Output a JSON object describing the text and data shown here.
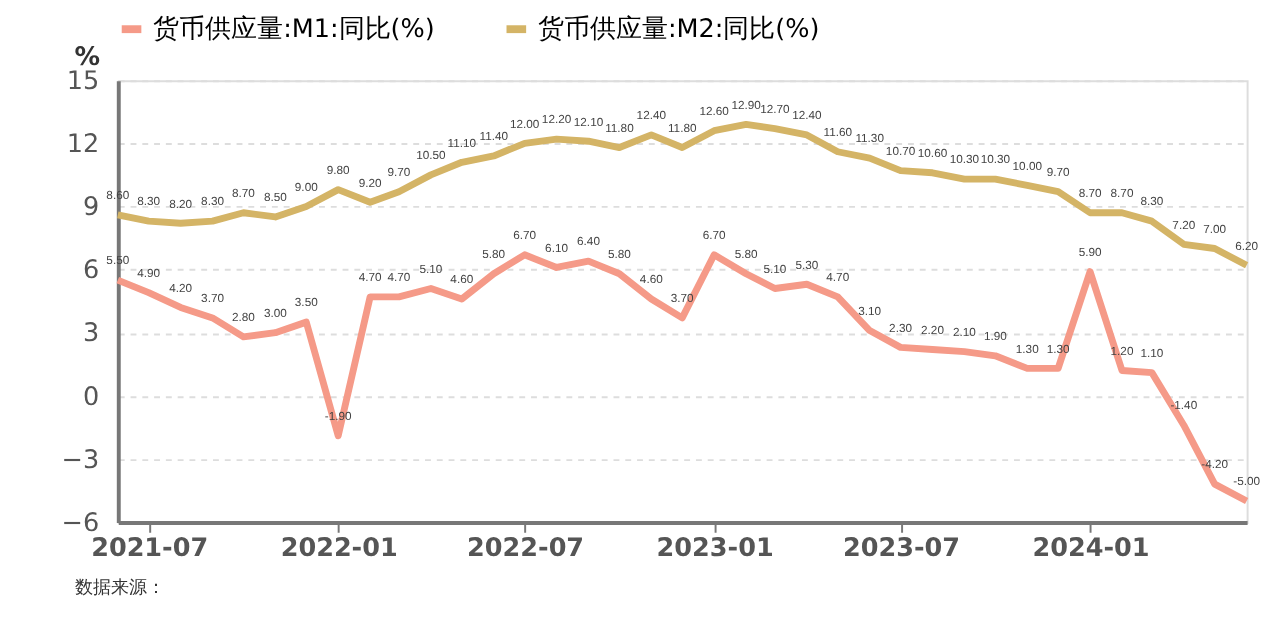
{
  "chart_data": {
    "type": "line",
    "ylabel": "%",
    "annotations": [
      "数据来源："
    ],
    "x": [
      "2021-06",
      "2021-07",
      "2021-08",
      "2021-09",
      "2021-10",
      "2021-11",
      "2021-12",
      "2022-01",
      "2022-02",
      "2022-03",
      "2022-04",
      "2022-05",
      "2022-06",
      "2022-07",
      "2022-08",
      "2022-09",
      "2022-10",
      "2022-11",
      "2022-12",
      "2023-01",
      "2023-02",
      "2023-03",
      "2023-04",
      "2023-05",
      "2023-06",
      "2023-07",
      "2023-08",
      "2023-09",
      "2023-10",
      "2023-11",
      "2023-12",
      "2024-01",
      "2024-02",
      "2024-03",
      "2024-04",
      "2024-05",
      "2024-06"
    ],
    "series": [
      {
        "name": "货币供应量:M1:同比(%)",
        "color": "#f59a88",
        "values": [
          5.5,
          4.9,
          4.2,
          3.7,
          2.8,
          3.0,
          3.5,
          -1.9,
          4.7,
          4.7,
          5.1,
          4.6,
          5.8,
          6.7,
          6.1,
          6.4,
          5.8,
          4.6,
          3.7,
          6.7,
          5.8,
          5.1,
          5.3,
          4.7,
          3.1,
          2.3,
          2.2,
          2.1,
          1.9,
          1.3,
          1.3,
          5.9,
          1.2,
          1.1,
          -1.4,
          -4.2,
          -5.0
        ],
        "value_labels": [
          "5.50",
          "4.90",
          "4.20",
          "3.70",
          "2.80",
          "3.00",
          "3.50",
          "-1.90",
          "4.70",
          "4.70",
          "5.10",
          "4.60",
          "5.80",
          "6.70",
          "6.10",
          "6.40",
          "5.80",
          "4.60",
          "3.70",
          "6.70",
          "5.80",
          "5.10",
          "5.30",
          "4.70",
          "3.10",
          "2.30",
          "2.20",
          "2.10",
          "1.90",
          "1.30",
          "1.30",
          "5.90",
          "1.20",
          "1.10",
          "-1.40",
          "-4.20",
          "-5.00"
        ]
      },
      {
        "name": "货币供应量:M2:同比(%)",
        "color": "#d4b466",
        "values": [
          8.6,
          8.3,
          8.2,
          8.3,
          8.7,
          8.5,
          9.0,
          9.8,
          9.2,
          9.7,
          10.5,
          11.1,
          11.4,
          12.0,
          12.2,
          12.1,
          11.8,
          12.4,
          11.8,
          12.6,
          12.9,
          12.7,
          12.4,
          11.6,
          11.3,
          10.7,
          10.6,
          10.3,
          10.3,
          10.0,
          9.7,
          8.7,
          8.7,
          8.3,
          7.2,
          7.0,
          6.2
        ],
        "value_labels": [
          "8.60",
          "8.30",
          "8.20",
          "8.30",
          "8.70",
          "8.50",
          "9.00",
          "9.80",
          "9.20",
          "9.70",
          "10.50",
          "11.10",
          "11.40",
          "12.00",
          "12.20",
          "12.10",
          "11.80",
          "12.40",
          "11.80",
          "12.60",
          "12.90",
          "12.70",
          "12.40",
          "11.60",
          "11.30",
          "10.70",
          "10.60",
          "10.30",
          "10.30",
          "10.00",
          "9.70",
          "8.70",
          "8.70",
          "8.30",
          "7.20",
          "7.00",
          "6.20"
        ]
      }
    ],
    "xlim": [
      "2021-06",
      "2024-06"
    ],
    "xticks": [
      "2021-07",
      "2022-01",
      "2022-07",
      "2023-01",
      "2023-07",
      "2024-01"
    ],
    "ylim": [
      -6,
      15
    ],
    "yticks": [
      -6,
      -3,
      0,
      3,
      6,
      9,
      12,
      15
    ],
    "grid": "y",
    "legend": "top",
    "marker": "none",
    "line_style": "solid"
  }
}
